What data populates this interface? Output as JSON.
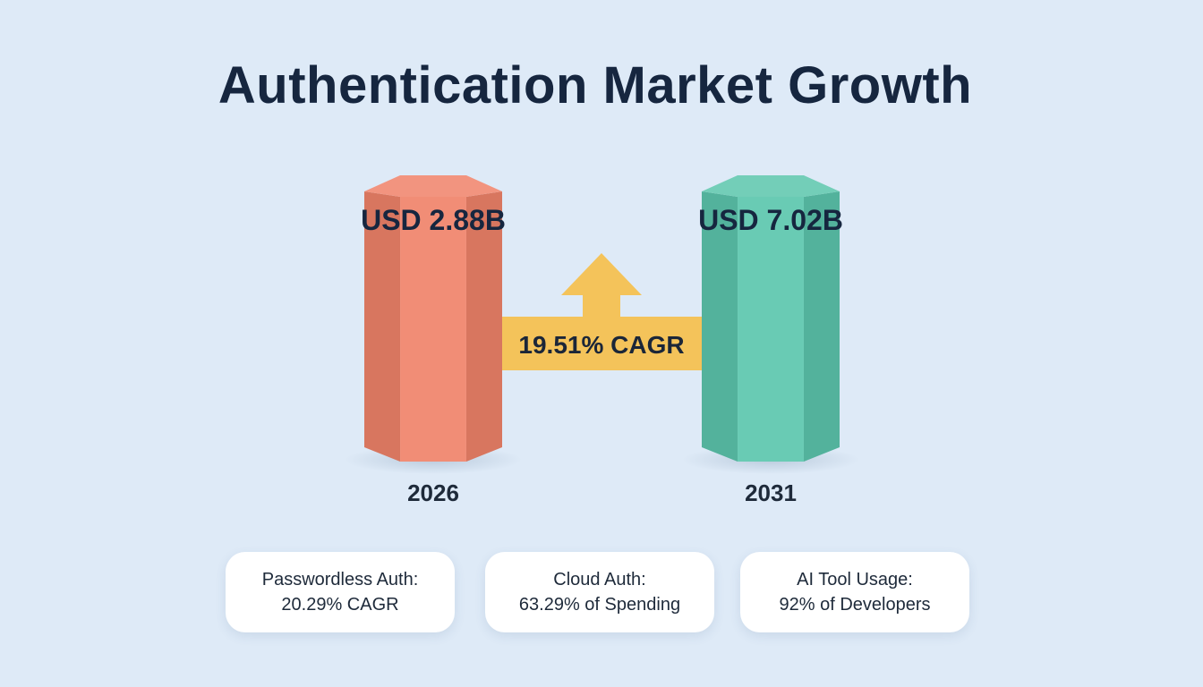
{
  "title": "Authentication Market Growth",
  "chart_data": {
    "type": "bar",
    "categories": [
      "2026",
      "2031"
    ],
    "values": [
      2.88,
      7.02
    ],
    "data_labels": [
      "USD 2.88B",
      "USD 7.02B"
    ],
    "value_unit": "USD B",
    "growth_label": "19.51% CAGR",
    "colors": {
      "bar_2026": "#f0836a",
      "bar_2031": "#5cc6ad",
      "arrow": "#f4c35a"
    }
  },
  "stats": [
    {
      "line1": "Passwordless Auth:",
      "line2": "20.29% CAGR"
    },
    {
      "line1": "Cloud Auth:",
      "line2": "63.29% of Spending"
    },
    {
      "line1": "AI Tool Usage:",
      "line2": "92% of Developers"
    }
  ]
}
